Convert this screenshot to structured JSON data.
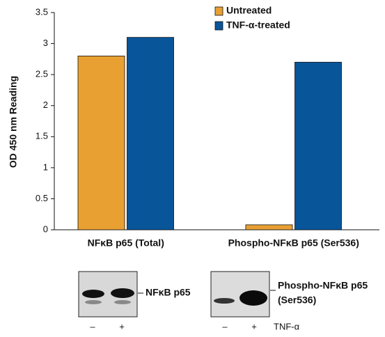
{
  "chart_data": {
    "type": "bar",
    "y_label": "OD 450 nm Reading",
    "categories": [
      "NFκB p65 (Total)",
      "Phospho-NFκB p65 (Ser536)"
    ],
    "series": [
      {
        "name": "Untreated",
        "color": "#e9a033",
        "values": [
          2.8,
          0.08
        ]
      },
      {
        "name": "TNF-α-treated",
        "color": "#08559a",
        "values": [
          3.1,
          2.7
        ]
      }
    ],
    "ylim": [
      0,
      3.5
    ],
    "yticks": [
      0,
      0.5,
      1,
      1.5,
      2,
      2.5,
      3,
      3.5
    ],
    "legend": "top-right"
  },
  "blots": [
    {
      "label_lines": [
        "NFκB p65"
      ],
      "lanes": [
        "–",
        "+"
      ]
    },
    {
      "label_lines": [
        "Phospho-NFκB p65",
        "(Ser536)"
      ],
      "lanes": [
        "–",
        "+"
      ]
    }
  ],
  "treatment_label": "TNF-α"
}
